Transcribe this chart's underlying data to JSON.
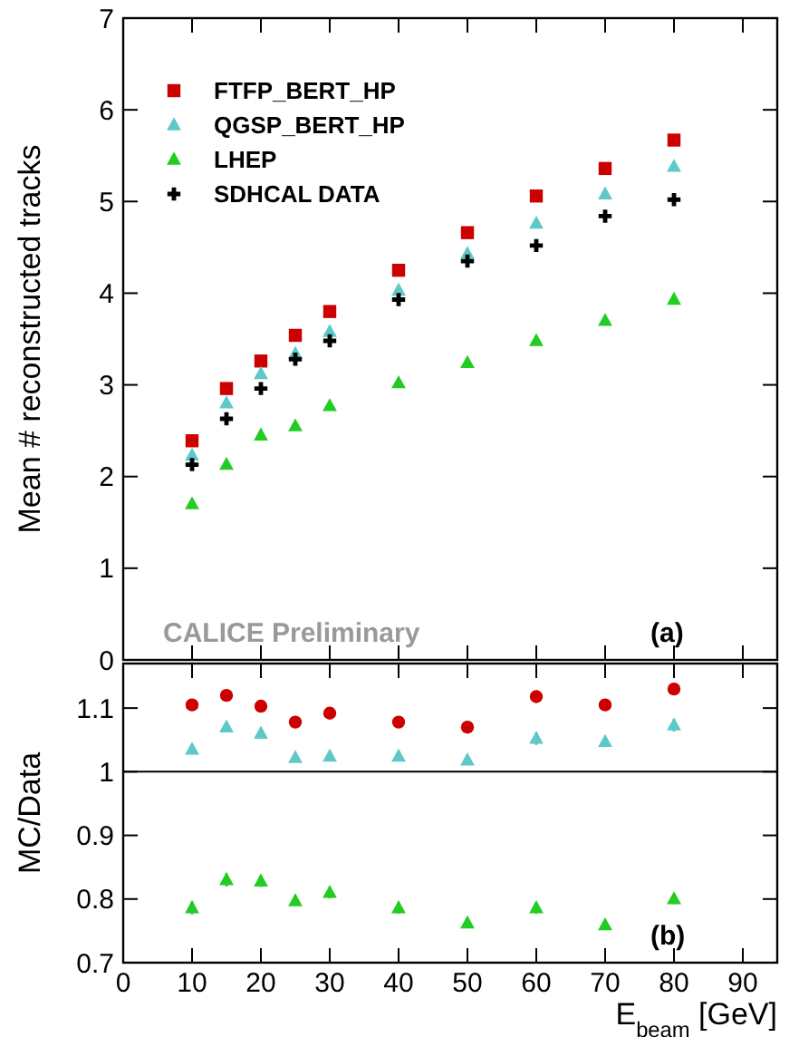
{
  "chart_data": [
    {
      "type": "scatter",
      "ylabel": "Mean # reconstructed tracks",
      "x": [
        10,
        15,
        20,
        25,
        30,
        40,
        50,
        60,
        70,
        80
      ],
      "xlim": [
        0,
        95
      ],
      "xticks": [
        0,
        10,
        20,
        30,
        40,
        50,
        60,
        70,
        80,
        90
      ],
      "ylim": [
        0,
        7
      ],
      "yticks": [
        0,
        1,
        2,
        3,
        4,
        5,
        6,
        7
      ],
      "tick_labels": "y",
      "legend": "top left",
      "grid": false,
      "annotations": [
        "CALICE Preliminary",
        "(a)"
      ],
      "series": [
        {
          "name": "FTFP_BERT_HP",
          "color": "#cc0000",
          "marker": "square",
          "values": [
            2.39,
            2.96,
            3.26,
            3.54,
            3.8,
            4.25,
            4.66,
            5.06,
            5.36,
            5.67
          ]
        },
        {
          "name": "QGSP_BERT_HP",
          "color": "#5ec8c8",
          "marker": "triangle",
          "values": [
            2.23,
            2.8,
            3.12,
            3.34,
            3.58,
            4.03,
            4.43,
            4.76,
            5.08,
            5.38
          ]
        },
        {
          "name": "LHEP",
          "color": "#22cc22",
          "marker": "triangle",
          "values": [
            1.7,
            2.13,
            2.45,
            2.55,
            2.77,
            3.02,
            3.24,
            3.48,
            3.7,
            3.93
          ]
        },
        {
          "name": "SDHCAL DATA",
          "color": "#000000",
          "marker": "cross",
          "values": [
            2.13,
            2.63,
            2.96,
            3.28,
            3.48,
            3.93,
            4.35,
            4.52,
            4.84,
            5.02
          ]
        }
      ]
    },
    {
      "type": "scatter",
      "ylabel": "MC/Data",
      "xlabel": "E$_{beam}$ [GeV]",
      "x": [
        10,
        15,
        20,
        25,
        30,
        40,
        50,
        60,
        70,
        80
      ],
      "xlim": [
        0,
        95
      ],
      "xticks": [
        0,
        10,
        20,
        30,
        40,
        50,
        60,
        70,
        80,
        90
      ],
      "ylim": [
        0.7,
        1.17
      ],
      "yticks": [
        {
          "value": 0.7,
          "label": "0.7"
        },
        {
          "value": 0.8,
          "label": "0.8"
        },
        {
          "value": 0.9,
          "label": "0.9"
        },
        {
          "value": 1,
          "label": "1"
        },
        {
          "value": 1.1,
          "label": "1.1"
        }
      ],
      "grid": false,
      "annotations": [
        "(b)"
      ],
      "ref_lines": [
        {
          "axis": "y",
          "value": 1,
          "color": "#000000"
        }
      ],
      "series": [
        {
          "color": "#cc0000",
          "marker": "circle",
          "values": [
            1.105,
            1.12,
            1.103,
            1.078,
            1.092,
            1.078,
            1.07,
            1.118,
            1.105,
            1.13
          ],
          "errors": [
            0.008,
            0.006,
            0.004,
            0.004,
            0.006,
            0.007,
            0.007,
            0.009,
            0.008,
            0.008
          ]
        },
        {
          "color": "#5ec8c8",
          "marker": "triangle",
          "values": [
            1.035,
            1.07,
            1.06,
            1.022,
            1.024,
            1.024,
            1.018,
            1.052,
            1.047,
            1.073
          ],
          "errors": [
            0.008,
            0.004,
            0.004,
            0.004,
            0.004,
            0.004,
            0.004,
            0.01,
            0.004,
            0.01
          ]
        },
        {
          "color": "#22cc22",
          "marker": "triangle",
          "values": [
            0.786,
            0.83,
            0.828,
            0.797,
            0.81,
            0.786,
            0.762,
            0.786,
            0.759,
            0.8
          ],
          "errors": [
            0.01,
            0.01,
            0.009,
            0.005,
            0.009,
            0.009,
            0.008,
            0.009,
            0.008,
            0.008
          ]
        }
      ]
    }
  ]
}
